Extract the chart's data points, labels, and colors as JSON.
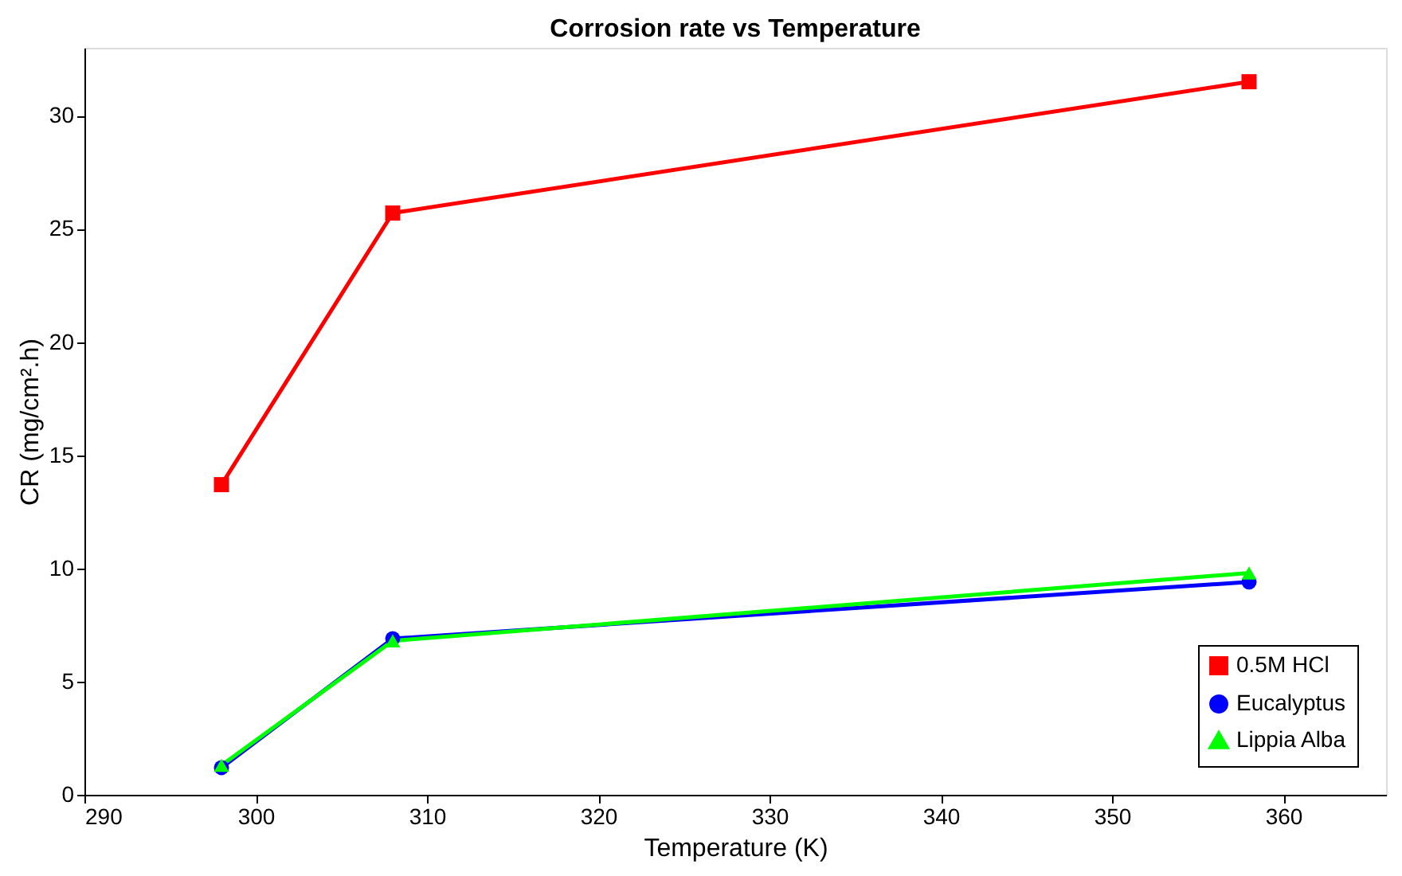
{
  "chart_data": {
    "type": "line",
    "title": "Corrosion rate vs Temperature",
    "xlabel": "Temperature (K)",
    "ylabel": "CR (mg/cm².h)",
    "x": [
      298,
      308,
      358
    ],
    "series": [
      {
        "name": "0.5M HCl",
        "color": "#ff0000",
        "marker": "square",
        "values": [
          13.7,
          25.7,
          31.5
        ]
      },
      {
        "name": "Eucalyptus",
        "color": "#0000ff",
        "marker": "circle",
        "values": [
          1.2,
          6.9,
          9.4
        ]
      },
      {
        "name": "Lippia Alba",
        "color": "#00ff00",
        "marker": "triangle",
        "values": [
          1.3,
          6.8,
          9.8
        ]
      }
    ],
    "xlim": [
      290,
      366
    ],
    "xticks": [
      290,
      300,
      310,
      320,
      330,
      340,
      350,
      360
    ],
    "ylim": [
      0,
      33
    ],
    "yticks": [
      0,
      5,
      10,
      15,
      20,
      25,
      30
    ],
    "grid": false,
    "legend": "bottom right",
    "line_style": "solid"
  }
}
